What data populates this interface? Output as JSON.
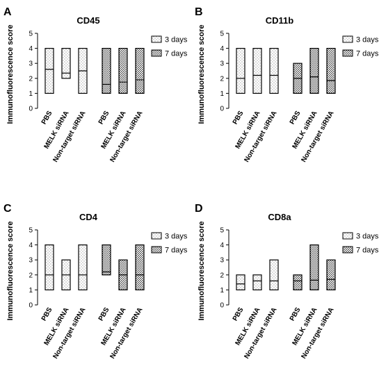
{
  "chart_data": [
    {
      "type": "bar",
      "panel": "A",
      "title": "CD45",
      "ylabel": "Immunofluorescence score",
      "ylim": [
        0,
        5
      ],
      "yticks": [
        0,
        1,
        2,
        3,
        4,
        5
      ],
      "categories": [
        "PBS",
        "MELK siRNA",
        "Non-target siRNA"
      ],
      "legend": [
        {
          "name": "3 days"
        },
        {
          "name": "7 days"
        }
      ],
      "series": [
        {
          "name": "3 days",
          "min": [
            1,
            2,
            1
          ],
          "max": [
            4,
            4,
            4
          ],
          "mean": [
            2.6,
            2.35,
            2.5
          ]
        },
        {
          "name": "7 days",
          "min": [
            1,
            1,
            1
          ],
          "max": [
            4,
            4,
            4
          ],
          "mean": [
            1.6,
            1.75,
            1.9
          ]
        }
      ]
    },
    {
      "type": "bar",
      "panel": "B",
      "title": "CD11b",
      "ylabel": "Immunofluorescence score",
      "ylim": [
        0,
        5
      ],
      "yticks": [
        0,
        1,
        2,
        3,
        4,
        5
      ],
      "categories": [
        "PBS",
        "MELK siRNA",
        "Non-target siRNA"
      ],
      "legend": [
        {
          "name": "3 days"
        },
        {
          "name": "7 days"
        }
      ],
      "series": [
        {
          "name": "3 days",
          "min": [
            1,
            1,
            1
          ],
          "max": [
            4,
            4,
            4
          ],
          "mean": [
            2.0,
            2.2,
            2.2
          ]
        },
        {
          "name": "7 days",
          "min": [
            1,
            1,
            1
          ],
          "max": [
            3,
            4,
            4
          ],
          "mean": [
            2.0,
            2.1,
            1.85
          ]
        }
      ]
    },
    {
      "type": "bar",
      "panel": "C",
      "title": "CD4",
      "ylabel": "Immunofluorescence score",
      "ylim": [
        0,
        5
      ],
      "yticks": [
        0,
        1,
        2,
        3,
        4,
        5
      ],
      "categories": [
        "PBS",
        "MELK siRNA",
        "Non-target siRNA"
      ],
      "legend": [
        {
          "name": "3 days"
        },
        {
          "name": "7 days"
        }
      ],
      "series": [
        {
          "name": "3 days",
          "min": [
            1,
            1,
            1
          ],
          "max": [
            4,
            3,
            4
          ],
          "mean": [
            2.0,
            2.0,
            2.0
          ]
        },
        {
          "name": "7 days",
          "min": [
            2,
            1,
            1
          ],
          "max": [
            4,
            3,
            4
          ],
          "mean": [
            2.2,
            2.0,
            2.0
          ]
        }
      ]
    },
    {
      "type": "bar",
      "panel": "D",
      "title": "CD8a",
      "ylabel": "Immunofluorescence score",
      "ylim": [
        0,
        5
      ],
      "yticks": [
        0,
        1,
        2,
        3,
        4,
        5
      ],
      "categories": [
        "PBS",
        "MELK siRNA",
        "Non-target siRNA"
      ],
      "legend": [
        {
          "name": "3 days"
        },
        {
          "name": "7 days"
        }
      ],
      "series": [
        {
          "name": "3 days",
          "min": [
            1,
            1,
            1
          ],
          "max": [
            2,
            2,
            3
          ],
          "mean": [
            1.4,
            1.6,
            1.6
          ]
        },
        {
          "name": "7 days",
          "min": [
            1,
            1,
            1
          ],
          "max": [
            2,
            4,
            3
          ],
          "mean": [
            1.6,
            1.65,
            1.7
          ]
        }
      ]
    }
  ],
  "style": {
    "pattern_3days_color": "#555555",
    "pattern_7days_color": "#222222",
    "axis_color": "#000000"
  }
}
